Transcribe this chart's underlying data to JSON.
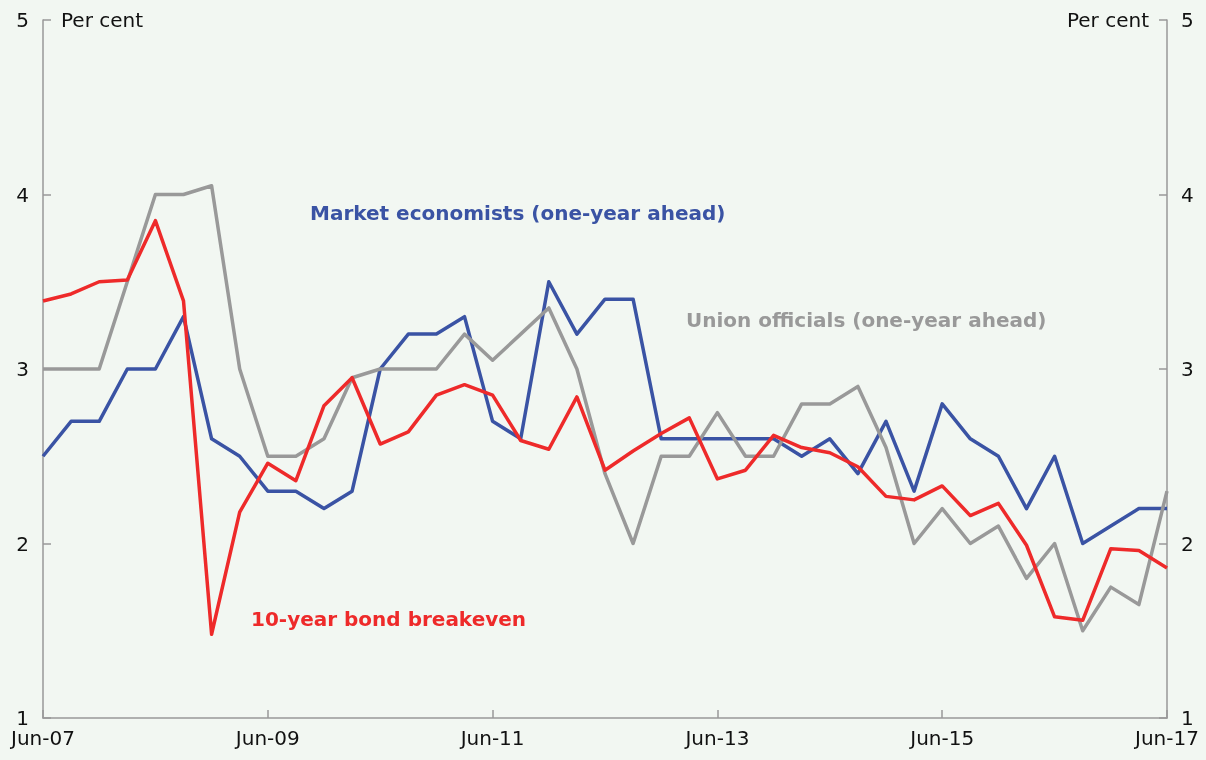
{
  "chart_data": {
    "type": "line",
    "categories": [
      "Jun-07",
      null,
      null,
      null,
      null,
      null,
      null,
      null,
      "Jun-09",
      null,
      null,
      null,
      null,
      null,
      null,
      null,
      "Jun-11",
      null,
      null,
      null,
      null,
      null,
      null,
      null,
      "Jun-13",
      null,
      null,
      null,
      null,
      null,
      null,
      null,
      "Jun-15",
      null,
      null,
      null,
      null,
      null,
      null,
      null,
      "Jun-17"
    ],
    "series": [
      {
        "name": "Market economists (one-year ahead)",
        "color": "#3a53a4",
        "values": [
          2.5,
          2.7,
          2.7,
          3.0,
          3.0,
          3.3,
          2.6,
          2.5,
          2.3,
          2.3,
          2.2,
          2.3,
          3.0,
          3.2,
          3.2,
          3.3,
          2.7,
          2.6,
          3.5,
          3.2,
          3.4,
          3.4,
          2.6,
          2.6,
          2.6,
          2.6,
          2.6,
          2.5,
          2.6,
          2.4,
          2.7,
          2.3,
          2.8,
          2.6,
          2.5,
          2.2,
          2.5,
          2.0,
          2.1,
          2.2,
          2.2
        ]
      },
      {
        "name": "Union officials (one-year ahead)",
        "color": "#999999",
        "values": [
          3.0,
          3.0,
          3.0,
          3.5,
          4.0,
          4.0,
          4.05,
          3.0,
          2.5,
          2.5,
          2.6,
          2.95,
          3.0,
          3.0,
          3.0,
          3.2,
          3.05,
          3.2,
          3.35,
          3.0,
          2.4,
          2.0,
          2.5,
          2.5,
          2.75,
          2.5,
          2.5,
          2.8,
          2.8,
          2.9,
          2.55,
          2.0,
          2.2,
          2.0,
          2.1,
          1.8,
          2.0,
          1.5,
          1.75,
          1.65,
          2.3
        ]
      },
      {
        "name": "10-year bond breakeven",
        "color": "#ee2a2a",
        "values": [
          3.39,
          3.43,
          3.5,
          3.51,
          3.85,
          3.39,
          1.48,
          2.18,
          2.46,
          2.36,
          2.79,
          2.95,
          2.57,
          2.64,
          2.85,
          2.91,
          2.85,
          2.59,
          2.54,
          2.84,
          2.42,
          2.53,
          2.63,
          2.72,
          2.37,
          2.42,
          2.62,
          2.55,
          2.52,
          2.44,
          2.27,
          2.25,
          2.33,
          2.16,
          2.23,
          1.99,
          1.58,
          1.56,
          1.97,
          1.96,
          1.86
        ]
      }
    ],
    "ylabel": "Per cent",
    "y2label": "Per cent",
    "ylim": [
      1,
      5
    ],
    "yticks": [
      1,
      2,
      3,
      4,
      5
    ],
    "y2lim": [
      1,
      5
    ],
    "y2ticks": [
      1,
      2,
      3,
      4,
      5
    ],
    "grid": false,
    "legend": false,
    "marker": "none",
    "line_style": "solid"
  }
}
